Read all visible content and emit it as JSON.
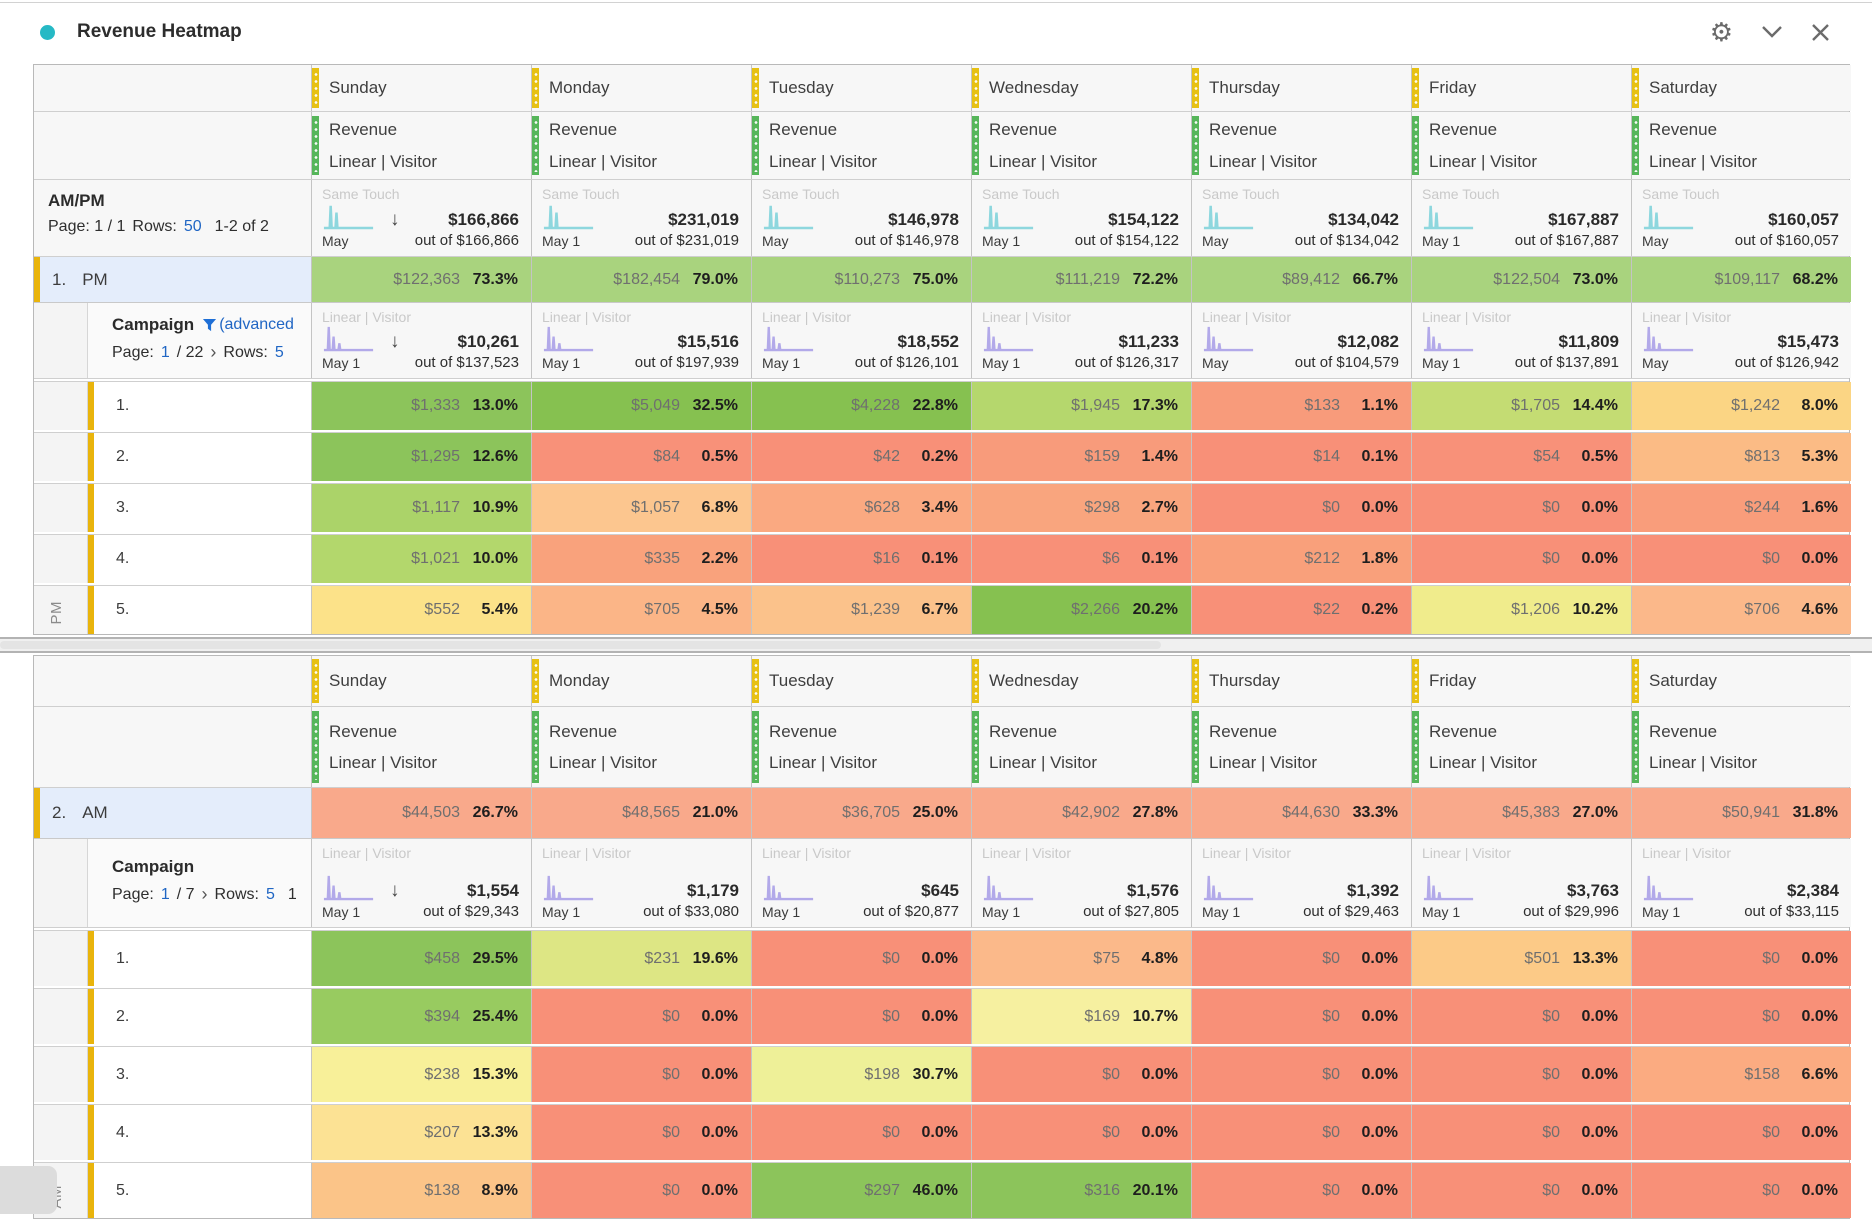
{
  "header": {
    "title": "Revenue Heatmap",
    "accent_dot_color": "#26b9c5"
  },
  "icons": {
    "settings_gear": "⚙",
    "sort_descending": "↓"
  },
  "colors": {
    "link_blue": "#2066c4",
    "filter_funnel_blue": "#1f6fd6",
    "column_handle_yellow": "#e7c114",
    "metric_handle_green": "#56b65a",
    "row_accent_gold": "#e9b40c",
    "summary_header_blue_bg": "#e4edfb",
    "teal_sparkline": "#8ed7de",
    "purple_sparkline": "#b2a9e9"
  },
  "days": [
    "Sunday",
    "Monday",
    "Tuesday",
    "Wednesday",
    "Thursday",
    "Friday",
    "Saturday"
  ],
  "metric_label": "Revenue",
  "metric_sublabel": "Linear | Visitor",
  "tables": [
    {
      "id": "pm",
      "side_label": "PM",
      "section": {
        "label": "AM/PM",
        "touch_label": "Same Touch",
        "pager": {
          "label": "Page: 1 / 1",
          "rows_label": "Rows:",
          "rows_link": "50",
          "range": "1-2 of 2"
        },
        "totals": [
          {
            "spark_label": "May",
            "value": "$166,866",
            "out_of": "out of $166,866"
          },
          {
            "spark_label": "May 1",
            "value": "$231,019",
            "out_of": "out of $231,019"
          },
          {
            "spark_label": "May",
            "value": "$146,978",
            "out_of": "out of $146,978"
          },
          {
            "spark_label": "May 1",
            "value": "$154,122",
            "out_of": "out of $154,122"
          },
          {
            "spark_label": "May",
            "value": "$134,042",
            "out_of": "out of $134,042"
          },
          {
            "spark_label": "May 1",
            "value": "$167,887",
            "out_of": "out of $167,887"
          },
          {
            "spark_label": "May",
            "value": "$160,057",
            "out_of": "out of $160,057"
          }
        ]
      },
      "summary_row": {
        "num": "1.",
        "label": "PM",
        "color": "#a9d37e",
        "cells": [
          {
            "v": "$122,363",
            "p": "73.3%"
          },
          {
            "v": "$182,454",
            "p": "79.0%"
          },
          {
            "v": "$110,273",
            "p": "75.0%"
          },
          {
            "v": "$111,219",
            "p": "72.2%"
          },
          {
            "v": "$89,412",
            "p": "66.7%"
          },
          {
            "v": "$122,504",
            "p": "73.0%"
          },
          {
            "v": "$109,117",
            "p": "68.2%"
          }
        ]
      },
      "campaign": {
        "label": "Campaign",
        "filter_text": "(advanced",
        "touch_label": "Linear | Visitor",
        "pager": {
          "label": "Page:",
          "page_link": "1",
          "page_total": "/ 22",
          "next_icon": "›",
          "rows_label": "Rows:",
          "rows_link": "5"
        },
        "totals": [
          {
            "spark_label": "May 1",
            "value": "$10,261",
            "out_of": "out of $137,523"
          },
          {
            "spark_label": "May 1",
            "value": "$15,516",
            "out_of": "out of $197,939"
          },
          {
            "spark_label": "May 1",
            "value": "$18,552",
            "out_of": "out of $126,101"
          },
          {
            "spark_label": "May 1",
            "value": "$11,233",
            "out_of": "out of $126,317"
          },
          {
            "spark_label": "May",
            "value": "$12,082",
            "out_of": "out of $104,579"
          },
          {
            "spark_label": "May 1",
            "value": "$11,809",
            "out_of": "out of $137,891"
          },
          {
            "spark_label": "May",
            "value": "$15,473",
            "out_of": "out of $126,942"
          }
        ]
      },
      "rows": [
        {
          "num": "1.",
          "cells": [
            {
              "v": "$1,333",
              "p": "13.0%",
              "c": "#8cc45b"
            },
            {
              "v": "$5,049",
              "p": "32.5%",
              "c": "#86c150"
            },
            {
              "v": "$4,228",
              "p": "22.8%",
              "c": "#86c150"
            },
            {
              "v": "$1,945",
              "p": "17.3%",
              "c": "#b5d76d"
            },
            {
              "v": "$133",
              "p": "1.1%",
              "c": "#f89b7b"
            },
            {
              "v": "$1,705",
              "p": "14.4%",
              "c": "#c4dc73"
            },
            {
              "v": "$1,242",
              "p": "8.0%",
              "c": "#fbd584"
            }
          ]
        },
        {
          "num": "2.",
          "cells": [
            {
              "v": "$1,295",
              "p": "12.6%",
              "c": "#8cc45b"
            },
            {
              "v": "$84",
              "p": "0.5%",
              "c": "#f89179"
            },
            {
              "v": "$42",
              "p": "0.2%",
              "c": "#f89078"
            },
            {
              "v": "$159",
              "p": "1.4%",
              "c": "#f89b7b"
            },
            {
              "v": "$14",
              "p": "0.1%",
              "c": "#f89078"
            },
            {
              "v": "$54",
              "p": "0.5%",
              "c": "#f89179"
            },
            {
              "v": "$813",
              "p": "5.3%",
              "c": "#fbbb85"
            }
          ]
        },
        {
          "num": "3.",
          "cells": [
            {
              "v": "$1,117",
              "p": "10.9%",
              "c": "#abd369"
            },
            {
              "v": "$1,057",
              "p": "6.8%",
              "c": "#fcc68f"
            },
            {
              "v": "$628",
              "p": "3.4%",
              "c": "#faa981"
            },
            {
              "v": "$298",
              "p": "2.7%",
              "c": "#f9a57e"
            },
            {
              "v": "$0",
              "p": "0.0%",
              "c": "#f89078"
            },
            {
              "v": "$0",
              "p": "0.0%",
              "c": "#f89078"
            },
            {
              "v": "$244",
              "p": "1.6%",
              "c": "#f99d7b"
            }
          ]
        },
        {
          "num": "4.",
          "cells": [
            {
              "v": "$1,021",
              "p": "10.0%",
              "c": "#b3d76c"
            },
            {
              "v": "$335",
              "p": "2.2%",
              "c": "#f9a27c"
            },
            {
              "v": "$16",
              "p": "0.1%",
              "c": "#f89078"
            },
            {
              "v": "$6",
              "p": "0.1%",
              "c": "#f89078"
            },
            {
              "v": "$212",
              "p": "1.8%",
              "c": "#f9a07b"
            },
            {
              "v": "$0",
              "p": "0.0%",
              "c": "#f89078"
            },
            {
              "v": "$0",
              "p": "0.0%",
              "c": "#f89078"
            }
          ]
        },
        {
          "num": "5.",
          "cells": [
            {
              "v": "$552",
              "p": "5.4%",
              "c": "#fce289"
            },
            {
              "v": "$705",
              "p": "4.5%",
              "c": "#fbb587"
            },
            {
              "v": "$1,239",
              "p": "6.7%",
              "c": "#fbc28b"
            },
            {
              "v": "$2,266",
              "p": "20.2%",
              "c": "#86c150"
            },
            {
              "v": "$22",
              "p": "0.2%",
              "c": "#f89078"
            },
            {
              "v": "$1,206",
              "p": "10.2%",
              "c": "#f0ec8c"
            },
            {
              "v": "$706",
              "p": "4.6%",
              "c": "#fbb88a"
            }
          ]
        }
      ]
    },
    {
      "id": "am",
      "side_label": "AM",
      "section": null,
      "summary_row": {
        "num": "2.",
        "label": "AM",
        "color": "#f9a98b",
        "cells": [
          {
            "v": "$44,503",
            "p": "26.7%"
          },
          {
            "v": "$48,565",
            "p": "21.0%"
          },
          {
            "v": "$36,705",
            "p": "25.0%"
          },
          {
            "v": "$42,902",
            "p": "27.8%"
          },
          {
            "v": "$44,630",
            "p": "33.3%"
          },
          {
            "v": "$45,383",
            "p": "27.0%"
          },
          {
            "v": "$50,941",
            "p": "31.8%"
          }
        ]
      },
      "campaign": {
        "label": "Campaign",
        "touch_label": "Linear | Visitor",
        "pager": {
          "label": "Page:",
          "page_link": "1",
          "page_total": "/ 7",
          "next_icon": "›",
          "rows_label": "Rows:",
          "rows_link": "5",
          "range": "1"
        },
        "totals": [
          {
            "spark_label": "May 1",
            "value": "$1,554",
            "out_of": "out of $29,343"
          },
          {
            "spark_label": "May 1",
            "value": "$1,179",
            "out_of": "out of $33,080"
          },
          {
            "spark_label": "May 1",
            "value": "$645",
            "out_of": "out of $20,877"
          },
          {
            "spark_label": "May 1",
            "value": "$1,576",
            "out_of": "out of $27,805"
          },
          {
            "spark_label": "May 1",
            "value": "$1,392",
            "out_of": "out of $29,463"
          },
          {
            "spark_label": "May 1",
            "value": "$3,763",
            "out_of": "out of $29,996"
          },
          {
            "spark_label": "May 1",
            "value": "$2,384",
            "out_of": "out of $33,115"
          }
        ]
      },
      "rows": [
        {
          "num": "1.",
          "cells": [
            {
              "v": "$458",
              "p": "29.5%",
              "c": "#8cc45b"
            },
            {
              "v": "$231",
              "p": "19.6%",
              "c": "#dde684"
            },
            {
              "v": "$0",
              "p": "0.0%",
              "c": "#f89078"
            },
            {
              "v": "$75",
              "p": "4.8%",
              "c": "#fbb98a"
            },
            {
              "v": "$0",
              "p": "0.0%",
              "c": "#f89078"
            },
            {
              "v": "$501",
              "p": "13.3%",
              "c": "#fcca87"
            },
            {
              "v": "$0",
              "p": "0.0%",
              "c": "#f89078"
            }
          ]
        },
        {
          "num": "2.",
          "cells": [
            {
              "v": "$394",
              "p": "25.4%",
              "c": "#98cb60"
            },
            {
              "v": "$0",
              "p": "0.0%",
              "c": "#f89078"
            },
            {
              "v": "$0",
              "p": "0.0%",
              "c": "#f89078"
            },
            {
              "v": "$169",
              "p": "10.7%",
              "c": "#f6f0a0"
            },
            {
              "v": "$0",
              "p": "0.0%",
              "c": "#f89078"
            },
            {
              "v": "$0",
              "p": "0.0%",
              "c": "#f89078"
            },
            {
              "v": "$0",
              "p": "0.0%",
              "c": "#f89078"
            }
          ]
        },
        {
          "num": "3.",
          "cells": [
            {
              "v": "$238",
              "p": "15.3%",
              "c": "#f8f099"
            },
            {
              "v": "$0",
              "p": "0.0%",
              "c": "#f89078"
            },
            {
              "v": "$198",
              "p": "30.7%",
              "c": "#eef098"
            },
            {
              "v": "$0",
              "p": "0.0%",
              "c": "#f89078"
            },
            {
              "v": "$0",
              "p": "0.0%",
              "c": "#f89078"
            },
            {
              "v": "$0",
              "p": "0.0%",
              "c": "#f89078"
            },
            {
              "v": "$158",
              "p": "6.6%",
              "c": "#fbab81"
            }
          ]
        },
        {
          "num": "4.",
          "cells": [
            {
              "v": "$207",
              "p": "13.3%",
              "c": "#fce294"
            },
            {
              "v": "$0",
              "p": "0.0%",
              "c": "#f89078"
            },
            {
              "v": "$0",
              "p": "0.0%",
              "c": "#f89078"
            },
            {
              "v": "$0",
              "p": "0.0%",
              "c": "#f89078"
            },
            {
              "v": "$0",
              "p": "0.0%",
              "c": "#f89078"
            },
            {
              "v": "$0",
              "p": "0.0%",
              "c": "#f89078"
            },
            {
              "v": "$0",
              "p": "0.0%",
              "c": "#f89078"
            }
          ]
        },
        {
          "num": "5.",
          "cells": [
            {
              "v": "$138",
              "p": "8.9%",
              "c": "#fbc488"
            },
            {
              "v": "$0",
              "p": "0.0%",
              "c": "#f89078"
            },
            {
              "v": "$297",
              "p": "46.0%",
              "c": "#8cc45b"
            },
            {
              "v": "$316",
              "p": "20.1%",
              "c": "#8cc45b"
            },
            {
              "v": "$0",
              "p": "0.0%",
              "c": "#f89078"
            },
            {
              "v": "$0",
              "p": "0.0%",
              "c": "#f89078"
            },
            {
              "v": "$0",
              "p": "0.0%",
              "c": "#f89078"
            }
          ]
        }
      ]
    }
  ]
}
